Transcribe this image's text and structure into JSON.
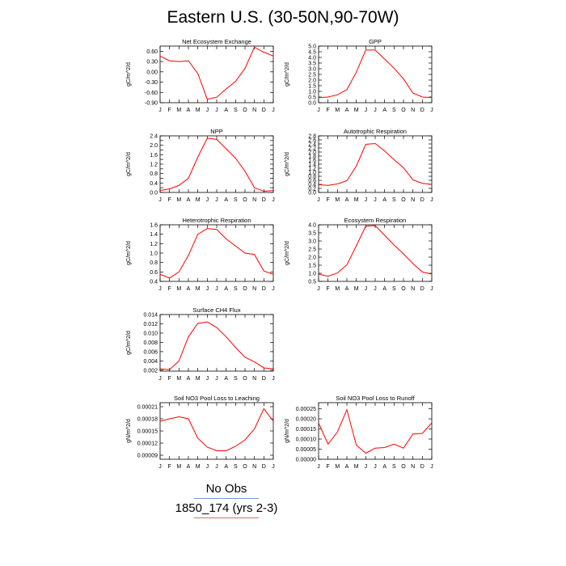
{
  "title": "Eastern U.S. (30-50N,90-70W)",
  "month_labels": [
    "J",
    "F",
    "M",
    "A",
    "M",
    "J",
    "J",
    "A",
    "S",
    "O",
    "N",
    "D",
    "J"
  ],
  "legend": [
    {
      "label": "No Obs",
      "color": "#7799cc"
    },
    {
      "label": "1850_174 (yrs 2-3)",
      "color": "#ee6666"
    }
  ],
  "line_color": "#ff0000",
  "chart_data": [
    {
      "type": "line",
      "title": "Net Ecosystem Exchange",
      "ylabel": "gC/m^2/d",
      "ylim": [
        -0.9,
        0.75
      ],
      "yticks": [
        -0.9,
        -0.6,
        -0.3,
        0.0,
        0.3,
        0.6
      ],
      "ytick_labels": [
        "-0.90",
        "-0.60",
        "-0.30",
        "0.00",
        "0.30",
        "0.60"
      ],
      "values": [
        0.46,
        0.32,
        0.3,
        0.32,
        -0.05,
        -0.8,
        -0.74,
        -0.5,
        -0.28,
        0.1,
        0.72,
        0.57,
        0.46
      ]
    },
    {
      "type": "line",
      "title": "GPP",
      "ylabel": "gC/m^2/d",
      "ylim": [
        0,
        5.0
      ],
      "yticks": [
        0,
        0.5,
        1,
        1.5,
        2,
        2.5,
        3,
        3.5,
        4,
        4.5,
        5
      ],
      "ytick_labels": [
        "0.0",
        "0.5",
        "1.0",
        "1.5",
        "2.0",
        "2.5",
        "3.0",
        "3.5",
        "4.0",
        "4.5",
        "5.0"
      ],
      "values": [
        0.45,
        0.5,
        0.7,
        1.15,
        2.7,
        4.65,
        4.65,
        3.85,
        3.05,
        2.1,
        0.85,
        0.5,
        0.45
      ]
    },
    {
      "type": "line",
      "title": "NPP",
      "ylabel": "gC/m^2/d",
      "ylim": [
        0,
        2.4
      ],
      "yticks": [
        0,
        0.2,
        0.4,
        0.6,
        0.8,
        1.0,
        1.2,
        1.4,
        1.6,
        1.8,
        2.0,
        2.2,
        2.4
      ],
      "ytick_labels": [
        "0.0",
        "",
        "0.4",
        "",
        "0.8",
        "",
        "1.2",
        "",
        "1.6",
        "",
        "2.0",
        "",
        "2.4"
      ],
      "values": [
        0.08,
        0.15,
        0.3,
        0.6,
        1.5,
        2.3,
        2.25,
        1.85,
        1.45,
        0.9,
        0.2,
        0.05,
        0.08
      ]
    },
    {
      "type": "line",
      "title": "Autotrophic Respiration",
      "ylabel": "gC/m^2/d",
      "ylim": [
        0,
        2.8
      ],
      "yticks": [
        0,
        0.2,
        0.4,
        0.6,
        0.8,
        1.0,
        1.2,
        1.4,
        1.6,
        1.8,
        2.0,
        2.2,
        2.4,
        2.6,
        2.8
      ],
      "ytick_labels": [
        "0.0",
        "0.2",
        "0.4",
        "0.6",
        "0.8",
        "1.0",
        "1.2",
        "1.4",
        "1.6",
        "1.8",
        "2.0",
        "2.2",
        "2.4",
        "2.6",
        "2.8"
      ],
      "values": [
        0.38,
        0.35,
        0.42,
        0.58,
        1.3,
        2.38,
        2.42,
        2.05,
        1.62,
        1.22,
        0.62,
        0.45,
        0.4
      ]
    },
    {
      "type": "line",
      "title": "Heterotrophic Respiration",
      "ylabel": "gC/m^2/d",
      "ylim": [
        0.4,
        1.6
      ],
      "yticks": [
        0.4,
        0.6,
        0.8,
        1.0,
        1.2,
        1.4,
        1.6
      ],
      "ytick_labels": [
        "0.4",
        "0.6",
        "0.8",
        "1.0",
        "1.2",
        "1.4",
        "1.6"
      ],
      "values": [
        0.55,
        0.47,
        0.6,
        0.95,
        1.4,
        1.52,
        1.5,
        1.3,
        1.15,
        1.0,
        0.97,
        0.62,
        0.55
      ]
    },
    {
      "type": "line",
      "title": "Ecosystem Respiration",
      "ylabel": "gC/m^2/d",
      "ylim": [
        0.5,
        4.0
      ],
      "yticks": [
        0.5,
        1,
        1.5,
        2,
        2.5,
        3,
        3.5,
        4
      ],
      "ytick_labels": [
        "0.5",
        "1.0",
        "1.5",
        "2.0",
        "2.5",
        "3.0",
        "3.5",
        "4.0"
      ],
      "values": [
        0.95,
        0.82,
        1.02,
        1.52,
        2.7,
        3.92,
        3.95,
        3.35,
        2.75,
        2.2,
        1.6,
        1.08,
        0.95
      ]
    },
    {
      "type": "line",
      "title": "Surface CH4 Flux",
      "ylabel": "gC/m^2/d",
      "ylim": [
        0.0018,
        0.014
      ],
      "yticks": [
        0.002,
        0.004,
        0.006,
        0.008,
        0.01,
        0.012,
        0.014
      ],
      "ytick_labels": [
        "0.002",
        "0.004",
        "0.006",
        "0.008",
        "0.010",
        "0.012",
        "0.014"
      ],
      "values": [
        0.0023,
        0.0021,
        0.004,
        0.0092,
        0.0121,
        0.0124,
        0.0112,
        0.0092,
        0.0069,
        0.0048,
        0.0038,
        0.0025,
        0.0023
      ]
    },
    {
      "type": "line",
      "title": "Soil NO3 Pool Loss to Leaching",
      "ylabel": "gN/m^2/d",
      "ylim": [
        8e-05,
        0.00022
      ],
      "yticks": [
        9e-05,
        0.00012,
        0.00015,
        0.00018,
        0.00021
      ],
      "ytick_labels": [
        "0.00009",
        "0.00012",
        "0.00015",
        "0.00018",
        "0.00021"
      ],
      "values": [
        0.000174,
        0.00018,
        0.000185,
        0.00018,
        0.000132,
        0.00011,
        0.000101,
        0.000101,
        0.000112,
        0.000128,
        0.000155,
        0.000205,
        0.000174
      ]
    },
    {
      "type": "line",
      "title": "Soil NO3 Pool Loss to Runoff",
      "ylabel": "gN/m^2/d",
      "ylim": [
        0,
        0.00028
      ],
      "yticks": [
        0,
        5e-05,
        0.0001,
        0.00015,
        0.0002,
        0.00025
      ],
      "ytick_labels": [
        "0.00000",
        "0.00005",
        "0.00010",
        "0.00015",
        "0.00020",
        "0.00025"
      ],
      "values": [
        0.00018,
        7.5e-05,
        0.000135,
        0.000245,
        7e-05,
        3e-05,
        5.5e-05,
        5.8e-05,
        7.5e-05,
        5.5e-05,
        0.000125,
        0.000128,
        0.00018
      ]
    }
  ]
}
